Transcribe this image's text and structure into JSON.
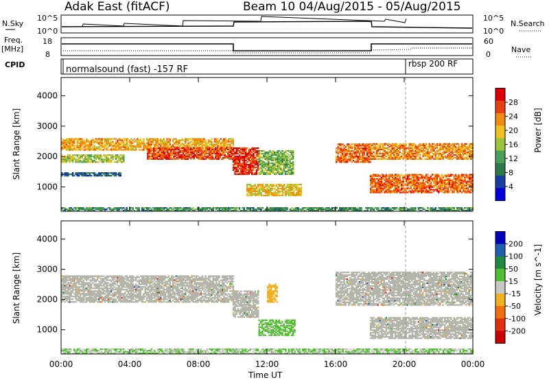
{
  "header": {
    "station": "Adak East (fitACF)",
    "beam_info": "Beam 10  04/Aug/2015 - 05/Aug/2015"
  },
  "status_panels": {
    "nsky_label": "N.Sky",
    "nsky_ticks": [
      "10^5",
      "10^0"
    ],
    "nsearch_label": "N.Search",
    "nsearch_ticks": [
      "10^5",
      "10^0"
    ],
    "freq_label": "Freq.",
    "freq_unit": "[MHz]",
    "freq_ticks": [
      "18",
      "8"
    ],
    "nave_label": "Nave",
    "nave_ticks": [
      "60",
      "0"
    ],
    "cpid_label": "CPID",
    "cpid_segments": [
      "normalsound (fast) -157 RF",
      "rbsp 200 RF"
    ]
  },
  "panels": {
    "power": {
      "ylabel": "Slant Range [km]",
      "yticks": [
        "4000",
        "3000",
        "2000",
        "1000"
      ],
      "cbar_label": "Power [dB]",
      "cbar_ticks": [
        "28",
        "24",
        "20",
        "16",
        "12",
        "8",
        "4"
      ]
    },
    "velocity": {
      "ylabel": "Slant Range [km]",
      "yticks": [
        "4000",
        "3000",
        "2000",
        "1000"
      ],
      "cbar_label": "Velocity [m s^-1]",
      "cbar_ticks": [
        "200",
        "100",
        "50",
        "15",
        "-15",
        "-50",
        "-100",
        "-200"
      ]
    }
  },
  "xaxis": {
    "ticks": [
      "00:00",
      "04:00",
      "08:00",
      "12:00",
      "16:00",
      "20:00",
      "00:00"
    ],
    "label": "Time UT"
  },
  "colors": {
    "power_scale": [
      "#0000dd",
      "#1a3fa0",
      "#2f7a4a",
      "#4aa05a",
      "#9ac23a",
      "#f0c020",
      "#f08a10",
      "#e84010",
      "#dd0000"
    ],
    "velocity_scale": [
      "#0000bb",
      "#1f5fb0",
      "#1f8a40",
      "#50c030",
      "#c8c8c0",
      "#f0b020",
      "#f07010",
      "#e03010",
      "#cc0000"
    ],
    "ground_scatter": "#b4b4aa"
  },
  "chart_data": [
    {
      "type": "heatmap",
      "title": "Power",
      "x_unit": "hours UT",
      "xlim": [
        0,
        24
      ],
      "ylim": [
        200,
        4600
      ],
      "yticks": [
        1000,
        2000,
        3000,
        4000
      ],
      "ylabel": "Slant Range [km]",
      "colorbar": {
        "label": "Power [dB]",
        "range": [
          0,
          32
        ],
        "ticks": [
          4,
          8,
          12,
          16,
          20,
          24,
          28
        ]
      },
      "echo_bands": [
        {
          "t": [
            0.0,
            10.0
          ],
          "r": [
            2200,
            2600
          ],
          "level": 22
        },
        {
          "t": [
            0.0,
            3.6
          ],
          "r": [
            1800,
            2050
          ],
          "level": 16
        },
        {
          "t": [
            5.0,
            10.0
          ],
          "r": [
            1900,
            2300
          ],
          "level": 28
        },
        {
          "t": [
            0.0,
            3.5
          ],
          "r": [
            1350,
            1450
          ],
          "level": 6
        },
        {
          "t": [
            10.0,
            11.5
          ],
          "r": [
            1400,
            2300
          ],
          "level": 30
        },
        {
          "t": [
            10.8,
            14.0
          ],
          "r": [
            700,
            1100
          ],
          "level": 20
        },
        {
          "t": [
            11.5,
            13.5
          ],
          "r": [
            1400,
            2200
          ],
          "level": 14
        },
        {
          "t": [
            16.0,
            18.0
          ],
          "r": [
            1800,
            2400
          ],
          "level": 26
        },
        {
          "t": [
            18.0,
            24.0
          ],
          "r": [
            1900,
            2400
          ],
          "level": 24
        },
        {
          "t": [
            18.0,
            24.0
          ],
          "r": [
            800,
            1400
          ],
          "level": 26
        },
        {
          "t": [
            0.0,
            24.0
          ],
          "r": [
            200,
            320
          ],
          "level": 10
        }
      ]
    },
    {
      "type": "heatmap",
      "title": "Velocity",
      "x_unit": "hours UT",
      "xlim": [
        0,
        24
      ],
      "ylim": [
        200,
        4600
      ],
      "yticks": [
        1000,
        2000,
        3000,
        4000
      ],
      "ylabel": "Slant Range [km]",
      "colorbar": {
        "label": "Velocity [m s^-1]",
        "range": [
          -250,
          250
        ],
        "ticks": [
          -200,
          -100,
          -50,
          -15,
          15,
          50,
          100,
          200
        ]
      },
      "echo_bands": [
        {
          "t": [
            0.0,
            10.0
          ],
          "r": [
            1900,
            2800
          ],
          "kind": "ground"
        },
        {
          "t": [
            10.0,
            11.5
          ],
          "r": [
            1400,
            2300
          ],
          "kind": "ground"
        },
        {
          "t": [
            11.5,
            13.6
          ],
          "r": [
            800,
            1300
          ],
          "velocity": 40
        },
        {
          "t": [
            12.0,
            12.6
          ],
          "r": [
            1900,
            2500
          ],
          "velocity": -60
        },
        {
          "t": [
            16.0,
            24.0
          ],
          "r": [
            1800,
            2900
          ],
          "kind": "ground"
        },
        {
          "t": [
            18.0,
            24.0
          ],
          "r": [
            700,
            1400
          ],
          "kind": "ground"
        },
        {
          "t": [
            0.0,
            24.0
          ],
          "r": [
            200,
            350
          ],
          "velocity": 30
        }
      ]
    }
  ]
}
